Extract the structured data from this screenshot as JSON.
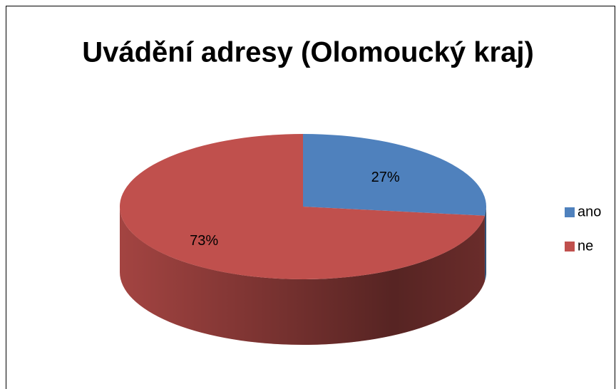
{
  "chart_data": {
    "type": "pie",
    "title": "Uvádění adresy (Olomoucký kraj)",
    "categories": [
      "ano",
      "ne"
    ],
    "values": [
      27,
      73
    ],
    "value_labels": [
      "27%",
      "73%"
    ],
    "colors": [
      "#4f81bd",
      "#c0504d"
    ],
    "legend": "right"
  }
}
